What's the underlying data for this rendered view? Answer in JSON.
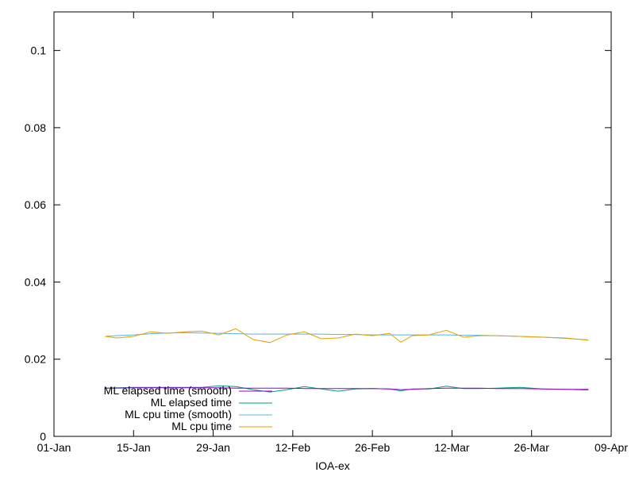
{
  "chart_data": {
    "type": "line",
    "title": "",
    "xlabel": "IOA-ex",
    "ylabel": "",
    "xlim": [
      "01-Jan",
      "09-Apr"
    ],
    "ylim": [
      0,
      0.11
    ],
    "grid": false,
    "legend_position": "bottom-left",
    "x_tick_labels": [
      "01-Jan",
      "15-Jan",
      "29-Jan",
      "12-Feb",
      "26-Feb",
      "12-Mar",
      "26-Mar",
      "09-Apr"
    ],
    "y_ticks": [
      0,
      0.02,
      0.04,
      0.06,
      0.08,
      0.1
    ],
    "y_tick_labels": [
      "0",
      "0.02",
      "0.04",
      "0.06",
      "0.08",
      "0.1"
    ],
    "x_dates": [
      "10-Jan",
      "12-Jan",
      "15-Jan",
      "18-Jan",
      "21-Jan",
      "24-Jan",
      "27-Jan",
      "30-Jan",
      "02-Feb",
      "05-Feb",
      "08-Feb",
      "11-Feb",
      "14-Feb",
      "17-Feb",
      "20-Feb",
      "23-Feb",
      "26-Feb",
      "01-Mar",
      "03-Mar",
      "05-Mar",
      "08-Mar",
      "11-Mar",
      "14-Mar",
      "17-Mar",
      "20-Mar",
      "24-Mar",
      "28-Mar",
      "01-Apr",
      "05-Apr"
    ],
    "series": [
      {
        "name": "ML elapsed time (smooth)",
        "color": "#9400d3",
        "values": [
          0.0125,
          0.0125,
          0.0126,
          0.0126,
          0.0126,
          0.0126,
          0.0126,
          0.0126,
          0.0125,
          0.0125,
          0.0125,
          0.0125,
          0.0124,
          0.0124,
          0.0124,
          0.0124,
          0.0124,
          0.0123,
          0.0121,
          0.0122,
          0.0124,
          0.0125,
          0.0125,
          0.0125,
          0.0124,
          0.0124,
          0.0123,
          0.0122,
          0.0122
        ]
      },
      {
        "name": "ML elapsed time",
        "color": "#009e73",
        "values": [
          0.0125,
          0.0126,
          0.0127,
          0.0127,
          0.0127,
          0.0127,
          0.0127,
          0.0131,
          0.0129,
          0.0121,
          0.0115,
          0.0121,
          0.0129,
          0.0123,
          0.0117,
          0.0123,
          0.0124,
          0.0123,
          0.0118,
          0.0123,
          0.0123,
          0.013,
          0.0124,
          0.0124,
          0.0125,
          0.0127,
          0.0123,
          0.0122,
          0.012
        ]
      },
      {
        "name": "ML cpu time (smooth)",
        "color": "#56b4e9",
        "values": [
          0.0259,
          0.0261,
          0.0263,
          0.0266,
          0.0268,
          0.0269,
          0.0268,
          0.0267,
          0.0266,
          0.0265,
          0.0265,
          0.0265,
          0.0265,
          0.0265,
          0.0264,
          0.0264,
          0.0263,
          0.0263,
          0.0263,
          0.0263,
          0.0263,
          0.0263,
          0.0262,
          0.0262,
          0.0261,
          0.0259,
          0.0257,
          0.0254,
          0.025
        ]
      },
      {
        "name": "ML cpu time",
        "color": "#e69f00",
        "values": [
          0.0259,
          0.0255,
          0.0259,
          0.0271,
          0.0267,
          0.0271,
          0.0273,
          0.0263,
          0.0279,
          0.0251,
          0.0243,
          0.0263,
          0.0271,
          0.0253,
          0.0255,
          0.0265,
          0.0261,
          0.0267,
          0.0244,
          0.0261,
          0.0263,
          0.0275,
          0.0257,
          0.0261,
          0.0261,
          0.0259,
          0.0257,
          0.0255,
          0.0249
        ]
      }
    ]
  }
}
